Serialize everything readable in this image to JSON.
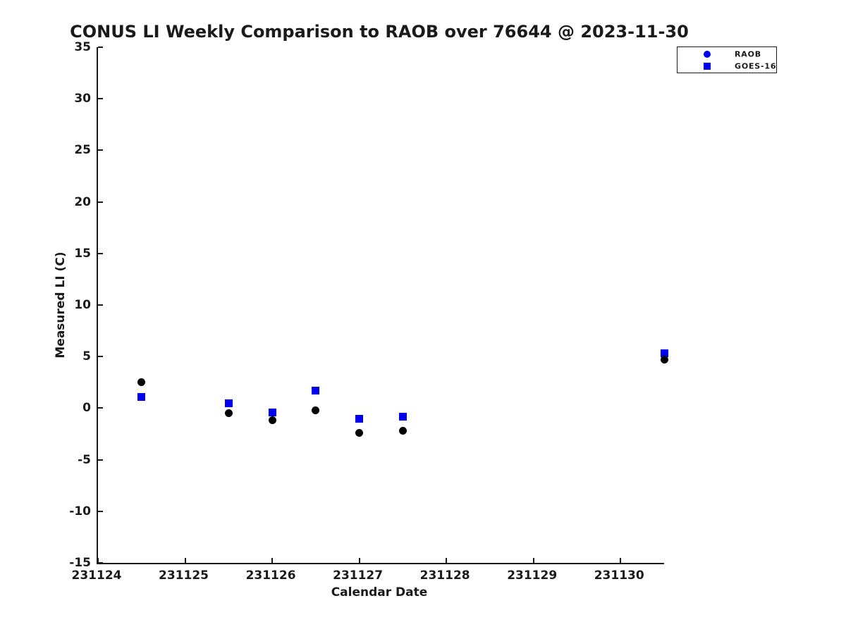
{
  "chart_data": {
    "type": "scatter",
    "title": "CONUS LI Weekly Comparison to RAOB over 76644 @ 2023-11-30",
    "xlabel": "Calendar Date",
    "ylabel": "Measured LI (C)",
    "xlim": [
      231124,
      231130.5
    ],
    "ylim": [
      -15,
      35
    ],
    "xticks": [
      231124,
      231125,
      231126,
      231127,
      231128,
      231129,
      231130
    ],
    "yticks": [
      35,
      30,
      25,
      20,
      15,
      10,
      5,
      0,
      -5,
      -10,
      -15
    ],
    "grid": false,
    "legend": {
      "position": "top-right-outside",
      "entries": [
        "RAOB",
        "GOES-16"
      ]
    },
    "x": [
      231124.5,
      231125.5,
      231126,
      231126.5,
      231127,
      231127.5,
      231130.5
    ],
    "series": [
      {
        "name": "RAOB",
        "marker": "circle",
        "color": "#000000",
        "legend_color": "#0000ee",
        "values": [
          2.5,
          -0.5,
          -1.2,
          -0.2,
          -2.4,
          -2.2,
          4.7
        ]
      },
      {
        "name": "GOES-16",
        "marker": "square",
        "color": "#0000ee",
        "legend_color": "#0000ee",
        "values": [
          1.1,
          0.5,
          -0.4,
          1.7,
          -1.0,
          -0.8,
          5.3
        ]
      }
    ],
    "colors": {
      "accent_blue": "#0000ee",
      "marker_black": "#000000",
      "text": "#1a1a1a"
    }
  }
}
